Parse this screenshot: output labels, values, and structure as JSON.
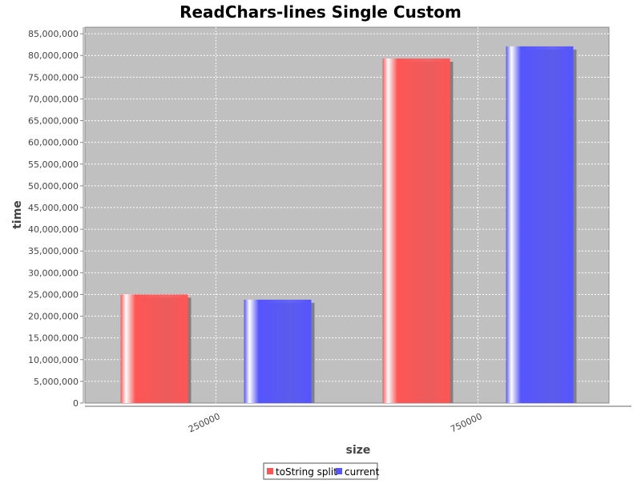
{
  "chart_data": {
    "type": "bar",
    "title": "ReadChars-lines Single Custom",
    "xlabel": "size",
    "ylabel": "time",
    "categories": [
      "250000",
      "750000"
    ],
    "series": [
      {
        "name": "toString split",
        "values": [
          25000000,
          79300000
        ],
        "color": "#ff5555"
      },
      {
        "name": "current",
        "values": [
          23800000,
          82100000
        ],
        "color": "#5555ff"
      }
    ],
    "ylim": [
      0,
      86500000
    ],
    "yticks": [
      "0",
      "5,000,000",
      "10,000,000",
      "15,000,000",
      "20,000,000",
      "25,000,000",
      "30,000,000",
      "35,000,000",
      "40,000,000",
      "45,000,000",
      "50,000,000",
      "55,000,000",
      "60,000,000",
      "65,000,000",
      "70,000,000",
      "75,000,000",
      "80,000,000",
      "85,000,000"
    ],
    "ytick_step": 5000000,
    "grid": true,
    "plot_background": "#c0c0c0",
    "legend_position": "bottom-center"
  }
}
